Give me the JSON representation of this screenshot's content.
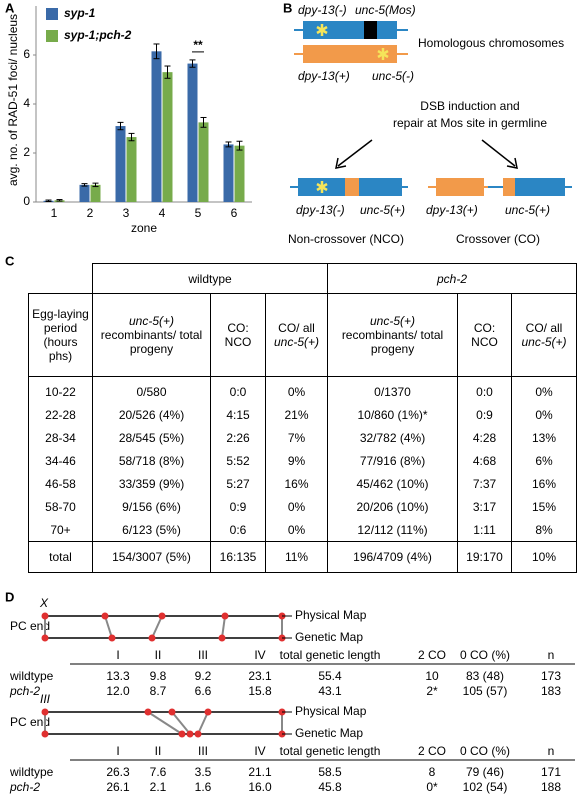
{
  "chart_data": {
    "type": "bar",
    "panel_label": "A",
    "categories": [
      "1",
      "2",
      "3",
      "4",
      "5",
      "6"
    ],
    "series": [
      {
        "name": "syp-1",
        "color": "#3a6aa8",
        "values": [
          0.05,
          0.7,
          3.1,
          6.15,
          5.65,
          2.35
        ],
        "errors": [
          0.03,
          0.05,
          0.15,
          0.3,
          0.15,
          0.1
        ]
      },
      {
        "name": "syp-1;pch-2",
        "color": "#77ab4b",
        "values": [
          0.07,
          0.7,
          2.65,
          5.3,
          3.25,
          2.3
        ],
        "errors": [
          0.03,
          0.07,
          0.15,
          0.25,
          0.2,
          0.18
        ]
      }
    ],
    "ylabel": "avg. no. of RAD-51 foci/ nucleus",
    "xlabel": "zone",
    "ylim": [
      0,
      8
    ],
    "yticks": [
      0,
      2,
      4,
      6
    ],
    "annotation": "**",
    "legend": "upper left"
  },
  "panel_b": {
    "label": "B",
    "gene_dpy_minus": "dpy-13(-)",
    "gene_mos": "unc-5(Mos)",
    "homologs": "Homologous chromosomes",
    "gene_dpy_plus": "dpy-13(+)",
    "gene_unc_minus": "unc-5(-)",
    "process": [
      "DSB induction and",
      "repair at Mos site in germline"
    ],
    "nco_genes": [
      "dpy-13(-)",
      "unc-5(+)"
    ],
    "co_genes": [
      "dpy-13(+)",
      "unc-5(+)"
    ],
    "nco": "Non-crossover (NCO)",
    "co": "Crossover (CO)"
  },
  "panel_c": {
    "label": "C",
    "groups": [
      "wildtype",
      "pch-2"
    ],
    "columns": [
      "Egg-laying period (hours phs)",
      "unc-5(+) recombinants/ total progeny",
      "CO: NCO",
      "CO/ all unc-5(+)",
      "unc-5(+) recombinants/ total progeny",
      "CO: NCO",
      "CO/ all unc-5(+)"
    ],
    "rows": [
      [
        "10-22",
        "0/580",
        "0:0",
        "0%",
        "0/1370",
        "0:0",
        "0%"
      ],
      [
        "22-28",
        "20/526 (4%)",
        "4:15",
        "21%",
        "10/860 (1%)*",
        "0:9",
        "0%"
      ],
      [
        "28-34",
        "28/545 (5%)",
        "2:26",
        "7%",
        "32/782 (4%)",
        "4:28",
        "13%"
      ],
      [
        "34-46",
        "58/718 (8%)",
        "5:52",
        "9%",
        "77/916 (8%)",
        "4:68",
        "6%"
      ],
      [
        "46-58",
        "33/359 (9%)",
        "5:27",
        "16%",
        "45/462 (10%)",
        "7:37",
        "16%"
      ],
      [
        "58-70",
        "9/156 (6%)",
        "0:9",
        "0%",
        "20/206 (10%)",
        "3:17",
        "15%"
      ],
      [
        "70+",
        "6/123 (5%)",
        "0:6",
        "0%",
        "12/112 (11%)",
        "1:11",
        "8%"
      ],
      [
        "total",
        "154/3007 (5%)",
        "16:135",
        "11%",
        "196/4709 (4%)",
        "19:170",
        "10%"
      ]
    ]
  },
  "panel_d": {
    "label": "D",
    "maps": [
      {
        "chromosome": "X",
        "end_label": "PC end",
        "physical": "Physical Map",
        "genetic": "Genetic Map",
        "columns": [
          "I",
          "II",
          "III",
          "IV",
          "total genetic length",
          "2 CO",
          "0 CO (%)",
          "n"
        ],
        "rows": [
          [
            "wildtype",
            "13.3",
            "9.8",
            "9.2",
            "23.1",
            "55.4",
            "10",
            "83 (48)",
            "173"
          ],
          [
            "pch-2",
            "12.0",
            "8.7",
            "6.6",
            "15.8",
            "43.1",
            "2*",
            "105 (57)",
            "183"
          ]
        ]
      },
      {
        "chromosome": "III",
        "end_label": "PC end",
        "physical": "Physical Map",
        "genetic": "Genetic Map",
        "columns": [
          "I",
          "II",
          "III",
          "IV",
          "total genetic length",
          "2 CO",
          "0 CO (%)",
          "n"
        ],
        "rows": [
          [
            "wildtype",
            "26.3",
            "7.6",
            "3.5",
            "21.1",
            "58.5",
            "8",
            "79 (46)",
            "171"
          ],
          [
            "pch-2",
            "26.1",
            "2.1",
            "1.6",
            "16.0",
            "45.8",
            "0*",
            "102 (54)",
            "188"
          ]
        ]
      }
    ]
  }
}
